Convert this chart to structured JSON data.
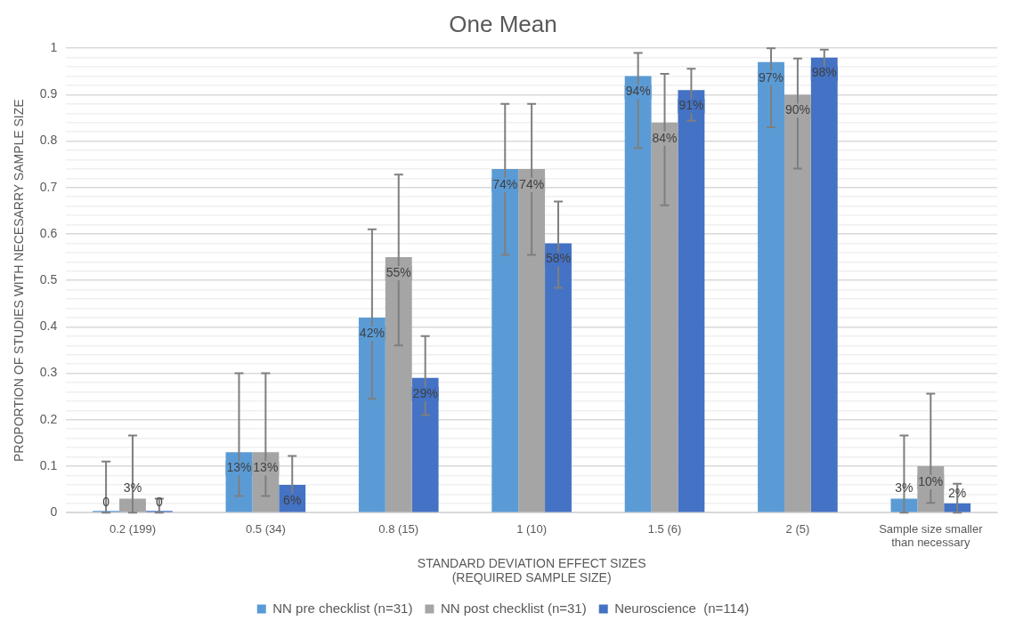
{
  "chart_data": {
    "type": "bar",
    "title": "One Mean",
    "xlabel": "STANDARD DEVIATION EFFECT SIZES\n(REQUIRED SAMPLE SIZE)",
    "ylabel": "PROPORTION OF STUDIES WITH NECESARRY SAMPLE SIZE",
    "categories": [
      "0.2 (199)",
      "0.5 (34)",
      "0.8 (15)",
      "1 (10)",
      "1.5 (6)",
      "2 (5)",
      "Sample size smaller than necessary"
    ],
    "series": [
      {
        "name": "NN pre checklist (n=31)",
        "color": "#5b9bd5",
        "values": [
          0,
          0.13,
          0.42,
          0.74,
          0.94,
          0.97,
          0.03
        ],
        "value_labels": [
          "0",
          "13%",
          "42%",
          "74%",
          "94%",
          "97%",
          "3%"
        ],
        "errors": [
          [
            0,
            0.11
          ],
          [
            0.036,
            0.3
          ],
          [
            0.245,
            0.61
          ],
          [
            0.555,
            0.88
          ],
          [
            0.785,
            0.99
          ],
          [
            0.83,
            1.0
          ],
          [
            0,
            0.166
          ]
        ]
      },
      {
        "name": "NN post checklist (n=31)",
        "color": "#a5a5a5",
        "values": [
          0.03,
          0.13,
          0.55,
          0.74,
          0.84,
          0.9,
          0.1
        ],
        "value_labels": [
          "3%",
          "13%",
          "55%",
          "74%",
          "84%",
          "90%",
          "10%"
        ],
        "errors": [
          [
            0,
            0.166
          ],
          [
            0.036,
            0.3
          ],
          [
            0.36,
            0.728
          ],
          [
            0.555,
            0.88
          ],
          [
            0.662,
            0.945
          ],
          [
            0.741,
            0.978
          ],
          [
            0.021,
            0.256
          ]
        ]
      },
      {
        "name": "Neuroscience  (n=114)",
        "color": "#4472c4",
        "values": [
          0,
          0.06,
          0.29,
          0.58,
          0.91,
          0.98,
          0.02
        ],
        "value_labels": [
          "0",
          "6%",
          "29%",
          "58%",
          "91%",
          "98%",
          "2%"
        ],
        "errors": [
          [
            0,
            0.03
          ],
          [
            0.02,
            0.122
          ],
          [
            0.21,
            0.38
          ],
          [
            0.484,
            0.67
          ],
          [
            0.844,
            0.956
          ],
          [
            0.935,
            0.997
          ],
          [
            0,
            0.062
          ]
        ]
      }
    ],
    "ylim": [
      0,
      1
    ],
    "yticks": [
      0,
      {
        "value": 0.02,
        "label": null
      },
      {
        "value": 0.04,
        "label": null
      },
      {
        "value": 0.06,
        "label": null
      },
      {
        "value": 0.08,
        "label": null
      },
      0.1,
      {
        "value": 0.12,
        "label": null
      },
      {
        "value": 0.14,
        "label": null
      },
      {
        "value": 0.16,
        "label": null
      },
      {
        "value": 0.18,
        "label": null
      },
      0.2,
      {
        "value": 0.22,
        "label": null
      },
      {
        "value": 0.24,
        "label": null
      },
      {
        "value": 0.26,
        "label": null
      },
      {
        "value": 0.28,
        "label": null
      },
      0.3,
      {
        "value": 0.32,
        "label": null
      },
      {
        "value": 0.34,
        "label": null
      },
      {
        "value": 0.36,
        "label": null
      },
      {
        "value": 0.38,
        "label": null
      },
      0.4,
      {
        "value": 0.42,
        "label": null
      },
      {
        "value": 0.44,
        "label": null
      },
      {
        "value": 0.46,
        "label": null
      },
      {
        "value": 0.48,
        "label": null
      },
      0.5,
      {
        "value": 0.52,
        "label": null
      },
      {
        "value": 0.54,
        "label": null
      },
      {
        "value": 0.56,
        "label": null
      },
      {
        "value": 0.58,
        "label": null
      },
      0.6,
      {
        "value": 0.62,
        "label": null
      },
      {
        "value": 0.64,
        "label": null
      },
      {
        "value": 0.66,
        "label": null
      },
      {
        "value": 0.68,
        "label": null
      },
      0.7,
      {
        "value": 0.72,
        "label": null
      },
      {
        "value": 0.74,
        "label": null
      },
      {
        "value": 0.76,
        "label": null
      },
      {
        "value": 0.78,
        "label": null
      },
      0.8,
      {
        "value": 0.82,
        "label": null
      },
      {
        "value": 0.84,
        "label": null
      },
      {
        "value": 0.86,
        "label": null
      },
      {
        "value": 0.88,
        "label": null
      },
      0.9,
      {
        "value": 0.92,
        "label": null
      },
      {
        "value": 0.94,
        "label": null
      },
      {
        "value": 0.96,
        "label": null
      },
      {
        "value": 0.98,
        "label": null
      },
      1
    ],
    "grid": true,
    "legend": "bottom"
  }
}
